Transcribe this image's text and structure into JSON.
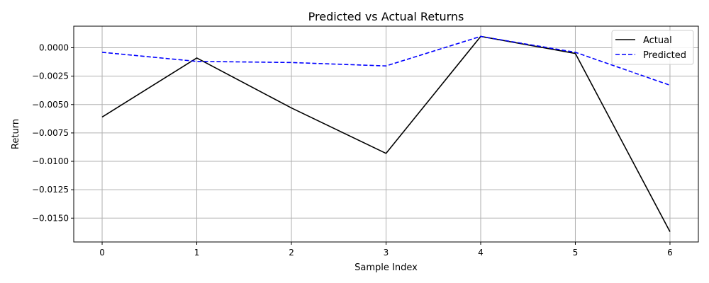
{
  "chart_data": {
    "type": "line",
    "title": "Predicted vs Actual Returns",
    "xlabel": "Sample Index",
    "ylabel": "Return",
    "x": [
      0,
      1,
      2,
      3,
      4,
      5,
      6
    ],
    "xlim": [
      -0.3,
      6.3
    ],
    "ylim": [
      -0.0171,
      0.0019
    ],
    "xticks": [
      0,
      1,
      2,
      3,
      4,
      5,
      6
    ],
    "yticks": [
      0.0,
      -0.0025,
      -0.005,
      -0.0075,
      -0.01,
      -0.0125,
      -0.015
    ],
    "ytick_labels": [
      "0.0000",
      "−0.0025",
      "−0.0050",
      "−0.0075",
      "−0.0100",
      "−0.0125",
      "−0.0150"
    ],
    "grid": true,
    "legend_position": "top-right",
    "series": [
      {
        "name": "Actual",
        "values": [
          -0.0061,
          -0.0009,
          -0.0053,
          -0.0093,
          0.001,
          -0.0005,
          -0.0162
        ],
        "color": "#000000",
        "dash": "solid"
      },
      {
        "name": "Predicted",
        "values": [
          -0.0004,
          -0.0012,
          -0.0013,
          -0.0016,
          0.001,
          -0.0004,
          -0.0033
        ],
        "color": "#0000ff",
        "dash": "dashed"
      }
    ]
  }
}
